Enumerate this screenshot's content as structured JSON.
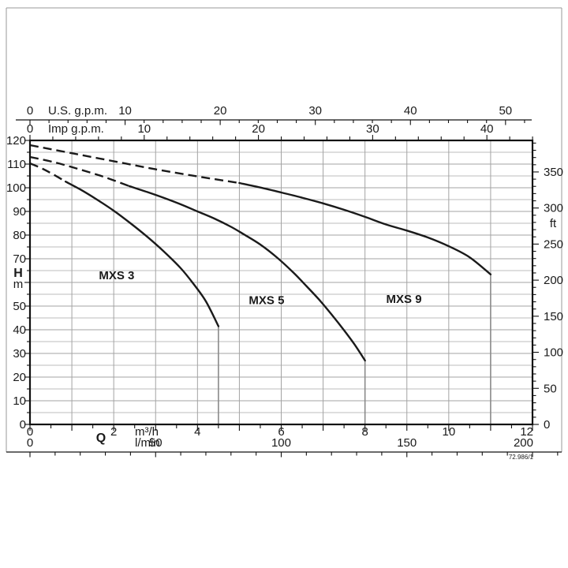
{
  "chart_data": {
    "type": "line",
    "title": "",
    "drawing_number": "72.986/1",
    "q_axis": {
      "label": "Q",
      "unit_primary": "m³/h",
      "unit_secondary": "l/min",
      "range": [
        0,
        12
      ],
      "m3h_ticks": [
        0,
        2,
        4,
        6,
        8,
        10,
        12
      ],
      "m3h_minor_step": 0.5,
      "lmin_ticks": [
        0,
        50,
        100,
        150,
        200
      ],
      "lmin_per_m3h": 16.6667,
      "lmin_minor_step": 10,
      "lmin_minor_max": 210
    },
    "h_axis": {
      "label": "H",
      "unit": "m",
      "range": [
        0,
        120
      ],
      "major_step": 10,
      "minor_step": 5,
      "labels": [
        0,
        10,
        20,
        30,
        40,
        50,
        70,
        80,
        90,
        100,
        110,
        120
      ]
    },
    "ft_axis": {
      "unit": "ft",
      "ticks": [
        0,
        50,
        100,
        150,
        200,
        250,
        300,
        350
      ],
      "minor_step": 10,
      "minor_max": 390,
      "ft_per_m": 3.2808
    },
    "us_gpm_axis": {
      "label": "U.S. g.p.m.",
      "ticks": [
        0,
        10,
        20,
        30,
        40,
        50
      ],
      "minor_step": 2,
      "minor_max": 52,
      "gpm_per_m3h": 4.4029
    },
    "imp_gpm_axis": {
      "label": "Imp g.p.m.",
      "ticks": [
        0,
        10,
        20,
        30,
        40
      ],
      "minor_step": 2,
      "minor_max": 44,
      "gpm_per_m3h": 3.6662
    },
    "series": [
      {
        "name": "MXS 3",
        "dashed": [
          [
            0,
            110.3
          ],
          [
            0.28,
            108.2
          ],
          [
            0.56,
            105.6
          ],
          [
            0.85,
            102.6
          ]
        ],
        "solid": [
          [
            0.85,
            102.6
          ],
          [
            1.2,
            99.3
          ],
          [
            1.6,
            95.0
          ],
          [
            2.0,
            90.3
          ],
          [
            2.4,
            85.0
          ],
          [
            2.8,
            79.3
          ],
          [
            3.2,
            73.0
          ],
          [
            3.6,
            66.0
          ],
          [
            3.9,
            59.5
          ],
          [
            4.2,
            52.0
          ],
          [
            4.5,
            41.5
          ]
        ],
        "drop_at": 4.5,
        "label_at": [
          2.07,
          63.0
        ]
      },
      {
        "name": "MXS 5",
        "dashed": [
          [
            0,
            113.0
          ],
          [
            0.6,
            110.7
          ],
          [
            1.2,
            107.7
          ],
          [
            1.8,
            104.4
          ],
          [
            2.37,
            100.7
          ]
        ],
        "solid": [
          [
            2.37,
            100.7
          ],
          [
            2.8,
            98.2
          ],
          [
            3.2,
            95.7
          ],
          [
            3.6,
            93.0
          ],
          [
            4.0,
            90.0
          ],
          [
            4.4,
            87.0
          ],
          [
            4.8,
            83.5
          ],
          [
            5.1,
            80.4
          ],
          [
            5.5,
            76.0
          ],
          [
            5.9,
            70.5
          ],
          [
            6.3,
            64.0
          ],
          [
            6.6,
            58.5
          ],
          [
            6.9,
            52.8
          ],
          [
            7.2,
            46.5
          ],
          [
            7.5,
            39.8
          ],
          [
            7.75,
            33.8
          ],
          [
            8.0,
            27.0
          ]
        ],
        "drop_at": 8,
        "label_at": [
          5.65,
          52.5
        ]
      },
      {
        "name": "MXS 9",
        "dashed": [
          [
            0,
            118.0
          ],
          [
            1,
            114.6
          ],
          [
            2,
            111.2
          ],
          [
            3,
            107.8
          ],
          [
            4,
            104.8
          ],
          [
            5,
            102.0
          ]
        ],
        "solid": [
          [
            5,
            102.0
          ],
          [
            5.5,
            100.1
          ],
          [
            6,
            98.0
          ],
          [
            6.5,
            95.8
          ],
          [
            7,
            93.4
          ],
          [
            7.5,
            90.7
          ],
          [
            8,
            87.7
          ],
          [
            8.5,
            84.5
          ],
          [
            9,
            81.9
          ],
          [
            9.5,
            79.0
          ],
          [
            10,
            75.3
          ],
          [
            10.5,
            70.6
          ],
          [
            11,
            63.4
          ]
        ],
        "drop_at": 11,
        "label_at": [
          8.93,
          53.0
        ]
      }
    ],
    "colors": {
      "curve": "#1a1a1a",
      "grid_major": "#a3a3a3",
      "grid_minor": "#bcbcbc",
      "drop_line": "#8a8a8a",
      "border": "#111111",
      "frame": "#999999",
      "text": "#1a1a1a"
    }
  }
}
